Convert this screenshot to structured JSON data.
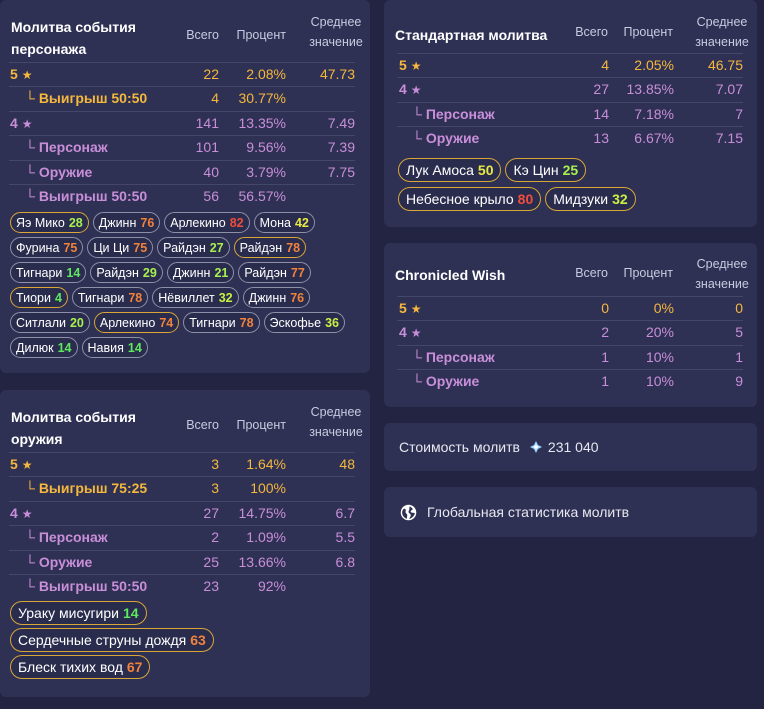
{
  "headers": {
    "total": "Всего",
    "percent": "Процент",
    "avg_line1": "Среднее",
    "avg_line2": "значение"
  },
  "char": {
    "title_line1": "Молитва события",
    "title_line2": "персонажа",
    "rows": [
      {
        "label": "5",
        "star": "★",
        "total": "22",
        "pct": "2.08%",
        "avg": "47.73"
      },
      {
        "label": "Выигрыш 50:50",
        "total": "4",
        "pct": "30.77%",
        "avg": ""
      },
      {
        "label": "4",
        "star": "★",
        "total": "141",
        "pct": "13.35%",
        "avg": "7.49"
      },
      {
        "label": "Персонаж",
        "total": "101",
        "pct": "9.56%",
        "avg": "7.39"
      },
      {
        "label": "Оружие",
        "total": "40",
        "pct": "3.79%",
        "avg": "7.75"
      },
      {
        "label": "Выигрыш 50:50",
        "total": "56",
        "pct": "56.57%",
        "avg": ""
      }
    ],
    "tags": [
      {
        "name": "Яэ Мико",
        "count": "28",
        "rarity": 5,
        "color": "#a8f050"
      },
      {
        "name": "Джинн",
        "count": "76",
        "rarity": 4,
        "color": "#f0823c"
      },
      {
        "name": "Арлекино",
        "count": "82",
        "rarity": 4,
        "color": "#ee4d3c"
      },
      {
        "name": "Мона",
        "count": "42",
        "rarity": 4,
        "color": "#e8e845"
      },
      {
        "name": "Фурина",
        "count": "75",
        "rarity": 4,
        "color": "#f0823c"
      },
      {
        "name": "Ци Ци",
        "count": "75",
        "rarity": 4,
        "color": "#f0823c"
      },
      {
        "name": "Райдэн",
        "count": "27",
        "rarity": 4,
        "color": "#a8f050"
      },
      {
        "name": "Райдэн",
        "count": "78",
        "rarity": 5,
        "color": "#f0823c"
      },
      {
        "name": "Тигнари",
        "count": "14",
        "rarity": 4,
        "color": "#5ee85e"
      },
      {
        "name": "Райдэн",
        "count": "29",
        "rarity": 4,
        "color": "#a8f050"
      },
      {
        "name": "Джинн",
        "count": "21",
        "rarity": 4,
        "color": "#a8f050"
      },
      {
        "name": "Райдэн",
        "count": "77",
        "rarity": 4,
        "color": "#f0823c"
      },
      {
        "name": "Тиори",
        "count": "4",
        "rarity": 5,
        "color": "#5ee85e"
      },
      {
        "name": "Тигнари",
        "count": "78",
        "rarity": 4,
        "color": "#f0823c"
      },
      {
        "name": "Нёвиллет",
        "count": "32",
        "rarity": 4,
        "color": "#c8f045"
      },
      {
        "name": "Джинн",
        "count": "76",
        "rarity": 4,
        "color": "#f0823c"
      },
      {
        "name": "Ситлали",
        "count": "20",
        "rarity": 4,
        "color": "#a8f050"
      },
      {
        "name": "Арлекино",
        "count": "74",
        "rarity": 5,
        "color": "#f0823c"
      },
      {
        "name": "Тигнари",
        "count": "78",
        "rarity": 4,
        "color": "#f0823c"
      },
      {
        "name": "Эскофье",
        "count": "36",
        "rarity": 4,
        "color": "#c8f045"
      },
      {
        "name": "Дилюк",
        "count": "14",
        "rarity": 4,
        "color": "#5ee85e"
      },
      {
        "name": "Навия",
        "count": "14",
        "rarity": 4,
        "color": "#5ee85e"
      }
    ]
  },
  "weap": {
    "title_line1": "Молитва события",
    "title_line2": "оружия",
    "rows": [
      {
        "label": "5",
        "star": "★",
        "total": "3",
        "pct": "1.64%",
        "avg": "48"
      },
      {
        "label": "Выигрыш 75:25",
        "total": "3",
        "pct": "100%",
        "avg": ""
      },
      {
        "label": "4",
        "star": "★",
        "total": "27",
        "pct": "14.75%",
        "avg": "6.7"
      },
      {
        "label": "Персонаж",
        "total": "2",
        "pct": "1.09%",
        "avg": "5.5"
      },
      {
        "label": "Оружие",
        "total": "25",
        "pct": "13.66%",
        "avg": "6.8"
      },
      {
        "label": "Выигрыш 50:50",
        "total": "23",
        "pct": "92%",
        "avg": ""
      }
    ],
    "tags": [
      {
        "name": "Ураку мисугири",
        "count": "14",
        "rarity": 5,
        "color": "#5ee85e"
      },
      {
        "name": "Сердечные струны дождя",
        "count": "63",
        "rarity": 5,
        "color": "#f0823c"
      },
      {
        "name": "Блеск тихих вод",
        "count": "67",
        "rarity": 5,
        "color": "#f0823c"
      }
    ]
  },
  "std": {
    "title": "Стандартная молитва",
    "rows": [
      {
        "label": "5",
        "star": "★",
        "total": "4",
        "pct": "2.05%",
        "avg": "46.75"
      },
      {
        "label": "4",
        "star": "★",
        "total": "27",
        "pct": "13.85%",
        "avg": "7.07"
      },
      {
        "label": "Персонаж",
        "total": "14",
        "pct": "7.18%",
        "avg": "7"
      },
      {
        "label": "Оружие",
        "total": "13",
        "pct": "6.67%",
        "avg": "7.15"
      }
    ],
    "tags": [
      {
        "name": "Лук Амоса",
        "count": "50",
        "rarity": 5,
        "color": "#e8e845"
      },
      {
        "name": "Кэ Цин",
        "count": "25",
        "rarity": 5,
        "color": "#a8f050"
      },
      {
        "name": "Небесное крыло",
        "count": "80",
        "rarity": 5,
        "color": "#ee4d3c"
      },
      {
        "name": "Мидзуки",
        "count": "32",
        "rarity": 5,
        "color": "#c8f045"
      }
    ]
  },
  "chr": {
    "title": "Chronicled Wish",
    "rows": [
      {
        "label": "5",
        "star": "★",
        "total": "0",
        "pct": "0%",
        "avg": "0"
      },
      {
        "label": "4",
        "star": "★",
        "total": "2",
        "pct": "20%",
        "avg": "5"
      },
      {
        "label": "Персонаж",
        "total": "1",
        "pct": "10%",
        "avg": "1"
      },
      {
        "label": "Оружие",
        "total": "1",
        "pct": "10%",
        "avg": "9"
      }
    ]
  },
  "cost": {
    "label": "Стоимость молитв",
    "value": "231 040",
    "icon": "primogem-icon"
  },
  "global": {
    "label": "Глобальная статистика молитв",
    "icon": "globe-icon"
  },
  "colors": {
    "five_star": "#f5b83d",
    "four_star": "#c88fd8",
    "card": "#2e3054",
    "bg": "#232442"
  }
}
